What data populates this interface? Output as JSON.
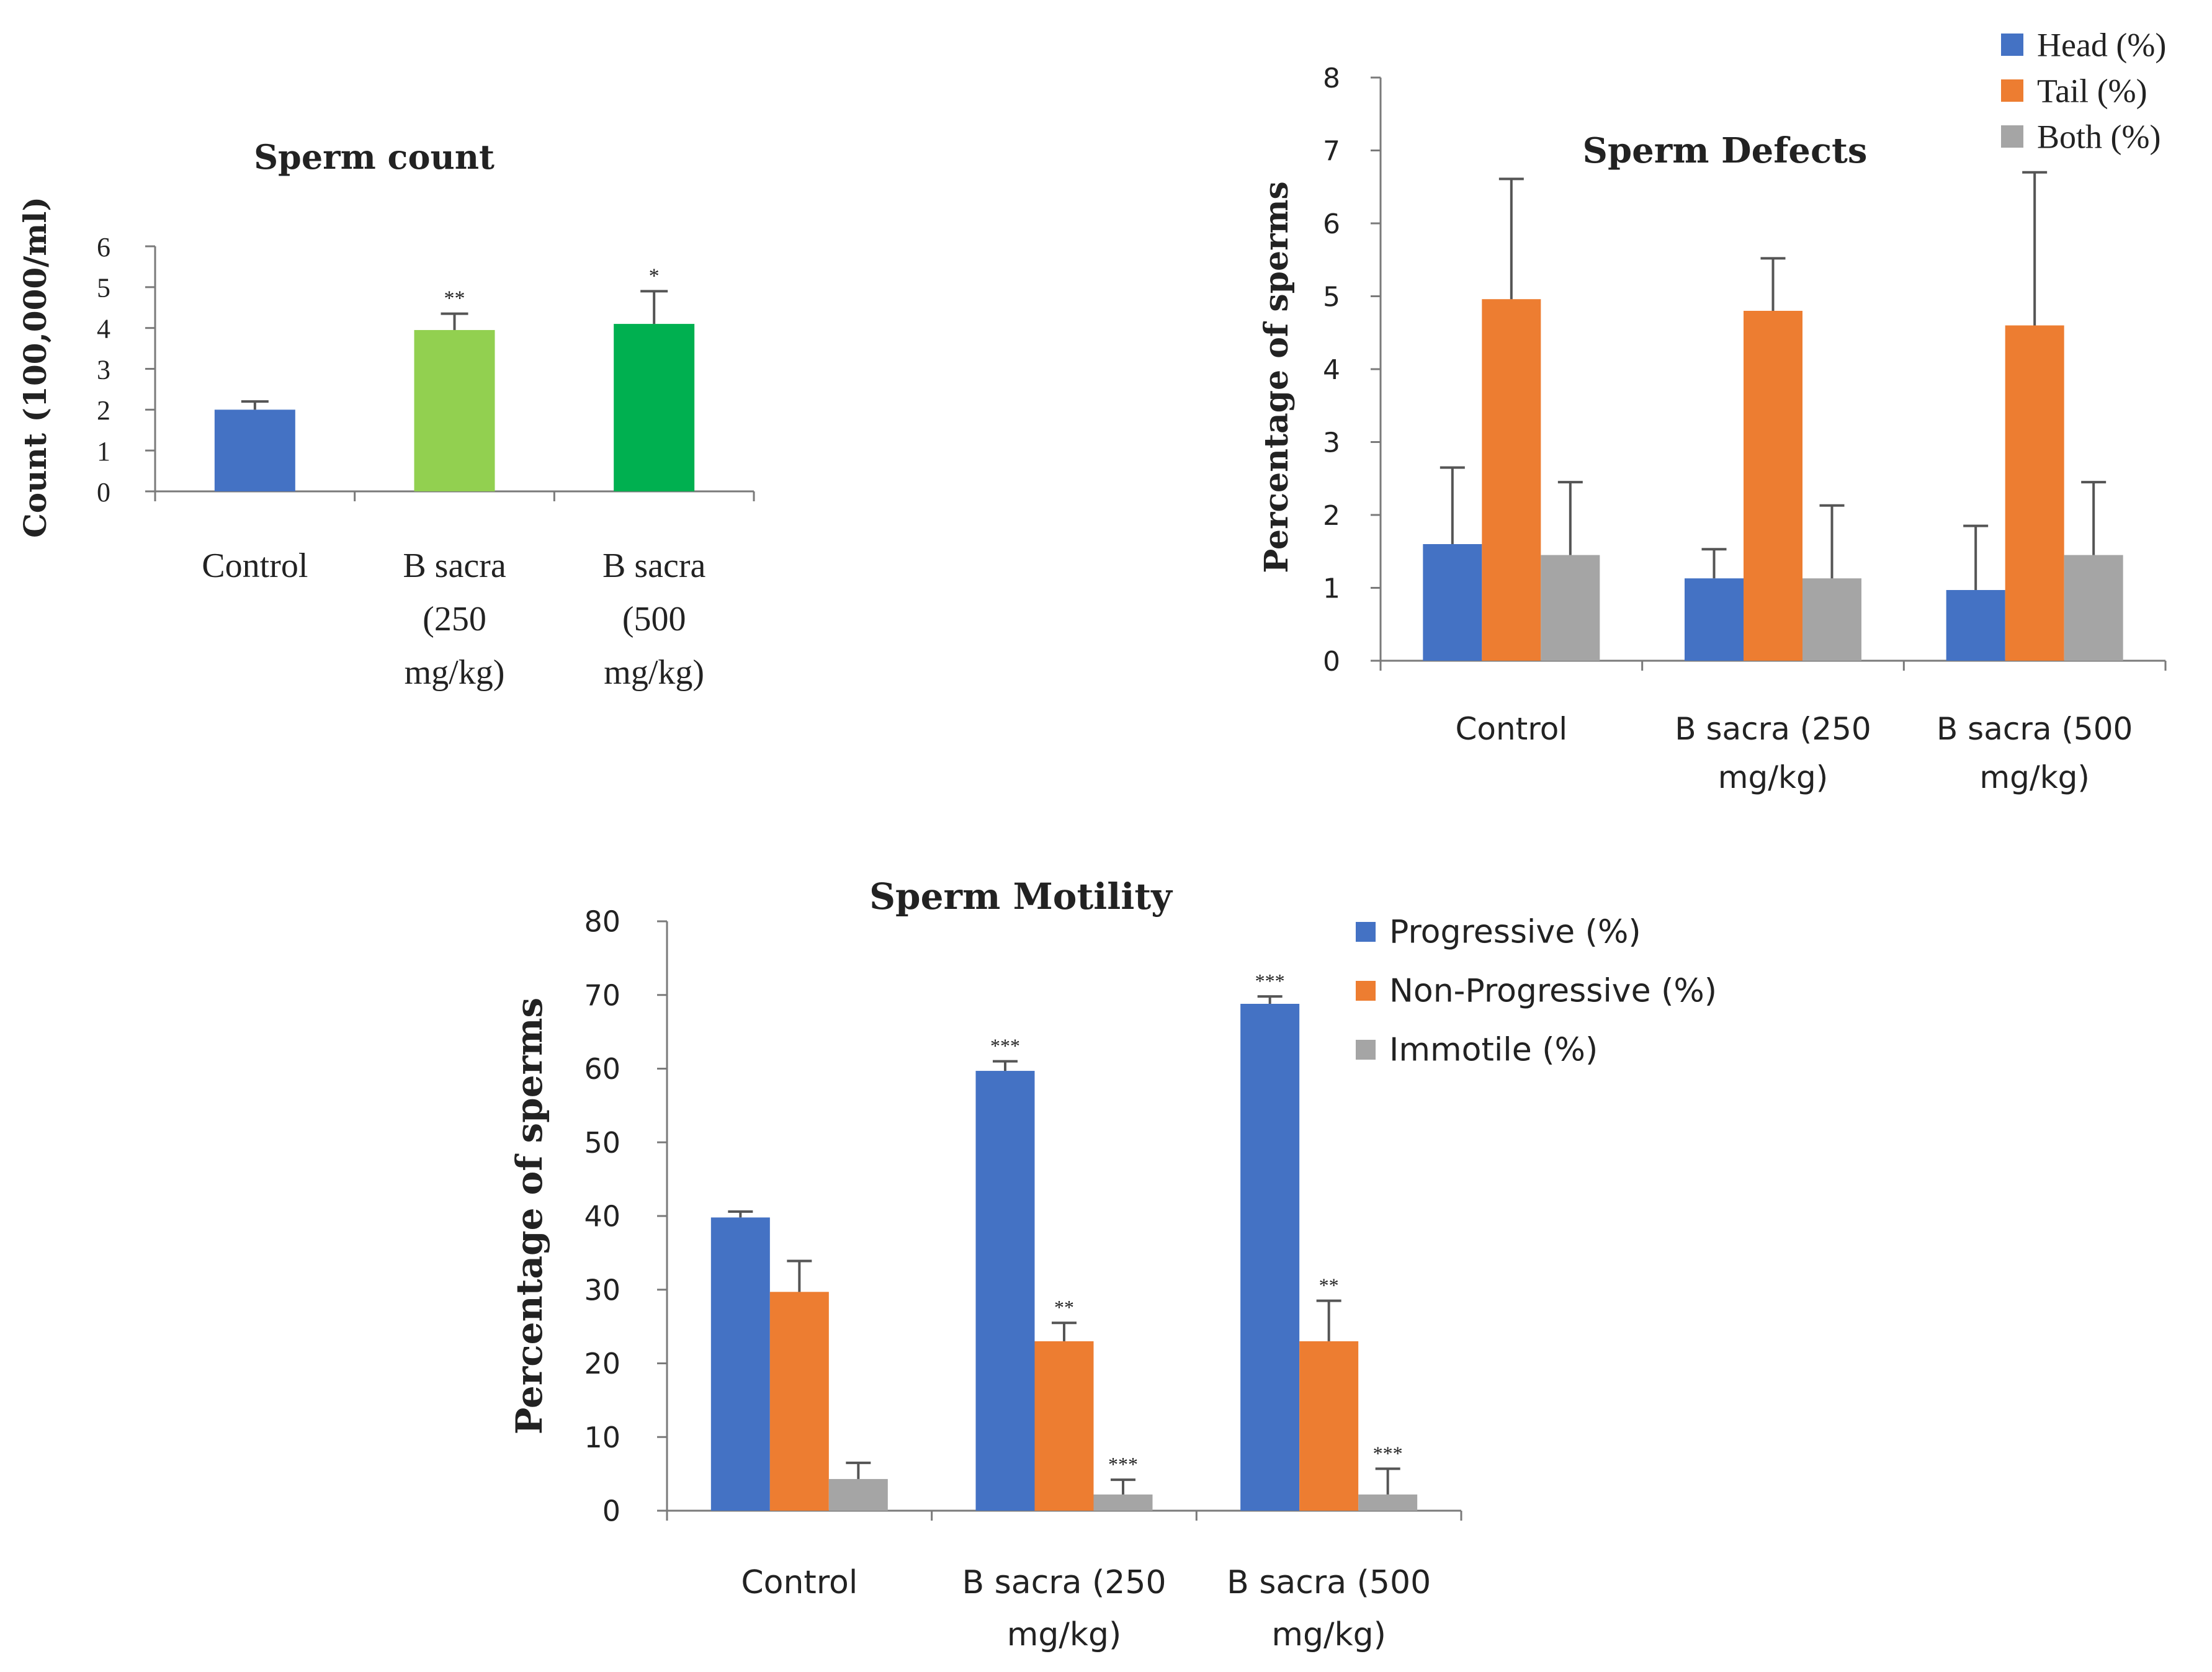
{
  "chart_data": [
    {
      "id": "count",
      "type": "bar",
      "title": "Sperm count",
      "xlabel": "",
      "ylabel": "Count (100,000/ml)",
      "ylim": [
        0,
        6
      ],
      "yticks": [
        0,
        1,
        2,
        3,
        4,
        5,
        6
      ],
      "grid": false,
      "legend": "none",
      "categories": [
        [
          "Control"
        ],
        [
          "B sacra",
          "(250",
          "mg/kg)"
        ],
        [
          "B sacra",
          "(500",
          "mg/kg)"
        ]
      ],
      "colors": [
        "#4472C4",
        "#92D050",
        "#00B050"
      ],
      "series": [
        {
          "name": "Count",
          "values": [
            2.0,
            3.95,
            4.1
          ],
          "errors": [
            0.2,
            0.4,
            0.8
          ],
          "annotations": [
            "",
            "**",
            "*"
          ]
        }
      ]
    },
    {
      "id": "defects",
      "type": "bar",
      "title": "Sperm Defects",
      "xlabel": "",
      "ylabel": "Percentage of sperms",
      "ylim": [
        0,
        8
      ],
      "yticks": [
        0,
        1,
        2,
        3,
        4,
        5,
        6,
        7,
        8
      ],
      "grid": false,
      "legend": "top-right",
      "categories": [
        [
          "Control"
        ],
        [
          "B sacra (250",
          "mg/kg)"
        ],
        [
          "B sacra (500",
          "mg/kg)"
        ]
      ],
      "series": [
        {
          "name": "Head (%)",
          "color": "#4472C4",
          "values": [
            1.6,
            1.13,
            0.97
          ],
          "errors": [
            1.05,
            0.4,
            0.88
          ],
          "annotations": [
            "",
            "",
            ""
          ]
        },
        {
          "name": "Tail (%)",
          "color": "#ED7D31",
          "values": [
            4.96,
            4.8,
            4.6
          ],
          "errors": [
            1.65,
            0.72,
            2.1
          ],
          "annotations": [
            "",
            "",
            ""
          ]
        },
        {
          "name": "Both (%)",
          "color": "#A5A5A5",
          "values": [
            1.45,
            1.13,
            1.45
          ],
          "errors": [
            1.0,
            1.0,
            1.0
          ],
          "annotations": [
            "",
            "",
            ""
          ]
        }
      ]
    },
    {
      "id": "motility",
      "type": "bar",
      "title": "Sperm Motility",
      "xlabel": "",
      "ylabel": "Percentage of sperms",
      "ylim": [
        0,
        80
      ],
      "yticks": [
        0,
        10,
        20,
        30,
        40,
        50,
        60,
        70,
        80
      ],
      "grid": false,
      "legend": "right",
      "categories": [
        [
          "Control"
        ],
        [
          "B sacra (250",
          "mg/kg)"
        ],
        [
          "B sacra (500",
          "mg/kg)"
        ]
      ],
      "series": [
        {
          "name": "Progressive (%)",
          "color": "#4472C4",
          "values": [
            39.8,
            59.7,
            68.8
          ],
          "errors": [
            0.8,
            1.3,
            1.0
          ],
          "annotations": [
            "",
            "***",
            "***"
          ]
        },
        {
          "name": "Non-Progressive (%)",
          "color": "#ED7D31",
          "values": [
            29.7,
            23.0,
            23.0
          ],
          "errors": [
            4.2,
            2.5,
            5.5
          ],
          "annotations": [
            "",
            "**",
            "**"
          ]
        },
        {
          "name": "Immotile (%)",
          "color": "#A5A5A5",
          "values": [
            4.3,
            2.2,
            2.2
          ],
          "errors": [
            2.2,
            2.0,
            3.5
          ],
          "annotations": [
            "",
            "***",
            "***"
          ]
        }
      ]
    }
  ]
}
